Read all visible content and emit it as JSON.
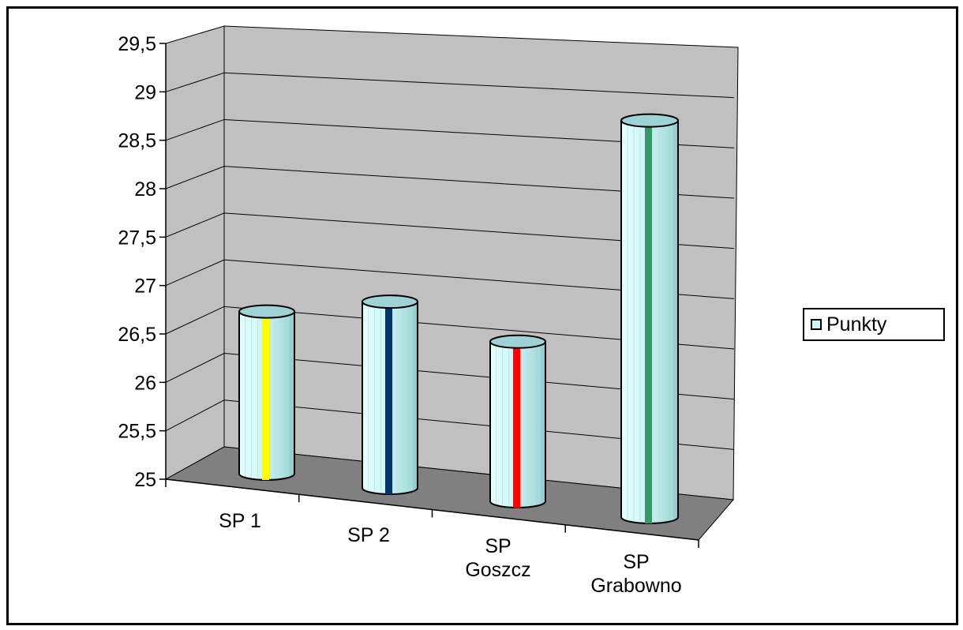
{
  "chart_data": {
    "type": "bar",
    "style": "3d-cylinder",
    "categories": [
      "SP 1",
      "SP 2",
      "SP Goszcz",
      "SP Grabowno"
    ],
    "category_lines": [
      [
        "SP 1"
      ],
      [
        "SP 2"
      ],
      [
        "SP",
        "Goszcz"
      ],
      [
        "SP",
        "Grabowno"
      ]
    ],
    "series": [
      {
        "name": "Punkty",
        "values": [
          26.6,
          26.9,
          26.7,
          29.1
        ]
      }
    ],
    "yticks": [
      "25",
      "25,5",
      "26",
      "26,5",
      "27",
      "27,5",
      "28",
      "28,5",
      "29",
      "29,5"
    ],
    "ylim": [
      25,
      29.5
    ],
    "grid": true,
    "legend": "right",
    "colors": {
      "bar_fill": "#ccf5f5",
      "bar_shade": "#9ed4d6",
      "bar_stripes": [
        "#ffff00",
        "#003366",
        "#ff0000",
        "#339966"
      ],
      "wall": "#c0c0c0",
      "floor": "#808080"
    }
  }
}
